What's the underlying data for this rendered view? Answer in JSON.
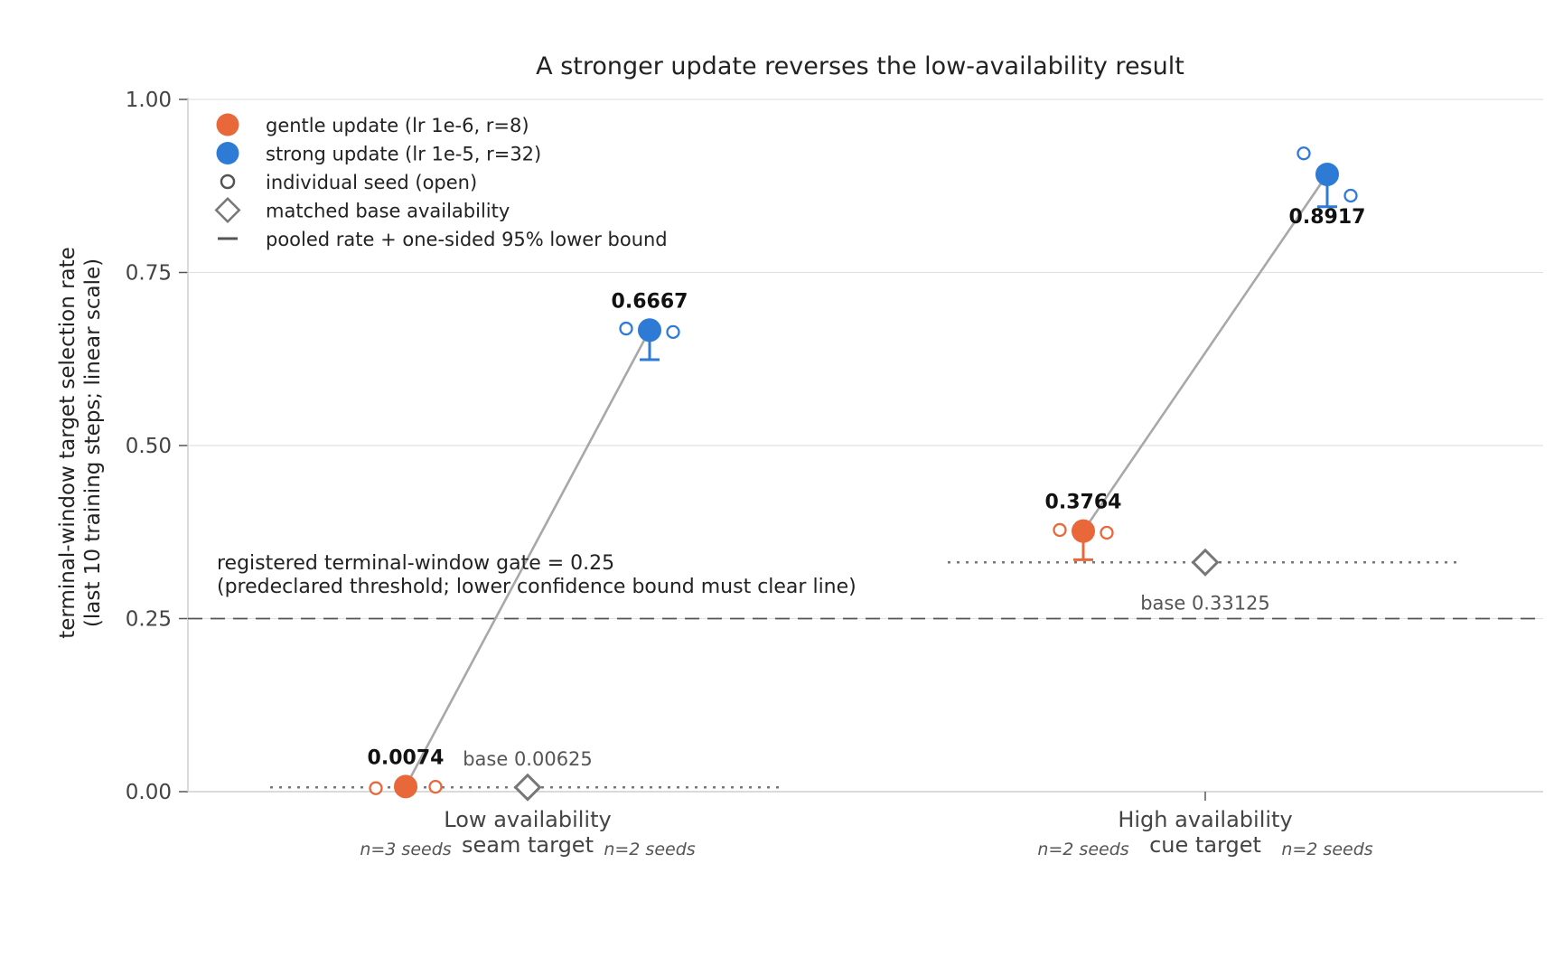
{
  "chart_data": {
    "type": "scatter",
    "title": "A stronger update reverses the low-availability result",
    "ylabel_line1": "terminal-window target selection rate",
    "ylabel_line2": "(last 10 training steps; linear scale)",
    "ylim": [
      0,
      1
    ],
    "y_ticks": [
      "0.00",
      "0.25",
      "0.50",
      "0.75",
      "1.00"
    ],
    "y_tick_values": [
      0,
      0.25,
      0.5,
      0.75,
      1.0
    ],
    "grid": "horizontal",
    "legend_position": "top-left",
    "categories": [
      {
        "line1": "Low availability",
        "line2": "seam target",
        "base": 0.00625,
        "base_label": "base 0.00625"
      },
      {
        "line1": "High availability",
        "line2": "cue target",
        "base": 0.33125,
        "base_label": "base 0.33125"
      }
    ],
    "series": [
      {
        "name": "gentle update (lr 1e-6, r=8)",
        "color": "#E8683A",
        "points": [
          {
            "category": 0,
            "pooled": 0.0074,
            "label": "0.0074",
            "lower": 0.0,
            "seeds": [
              0.005,
              0.0074,
              0.007
            ],
            "n_label": "n=3 seeds"
          },
          {
            "category": 1,
            "pooled": 0.3764,
            "label": "0.3764",
            "lower": 0.335,
            "seeds": [
              0.378,
              0.374
            ],
            "n_label": "n=2 seeds"
          }
        ]
      },
      {
        "name": "strong update (lr 1e-5, r=32)",
        "color": "#2E7BD6",
        "points": [
          {
            "category": 0,
            "pooled": 0.6667,
            "label": "0.6667",
            "lower": 0.624,
            "seeds": [
              0.669,
              0.664
            ],
            "n_label": "n=2 seeds"
          },
          {
            "category": 1,
            "pooled": 0.8917,
            "label": "0.8917",
            "lower": 0.845,
            "seeds": [
              0.922,
              0.861
            ],
            "n_label": "n=2 seeds"
          }
        ]
      }
    ],
    "legend": [
      {
        "kind": "gentle",
        "label": "gentle update (lr 1e-6, r=8)"
      },
      {
        "kind": "strong",
        "label": "strong update (lr 1e-5, r=32)"
      },
      {
        "kind": "seed",
        "label": "individual seed (open)"
      },
      {
        "kind": "base",
        "label": "matched base availability"
      },
      {
        "kind": "bound",
        "label": "pooled rate + one-sided 95% lower bound"
      }
    ],
    "threshold": {
      "value": 0.25,
      "line1": "registered terminal-window gate = 0.25",
      "line2": "(predeclared threshold; lower confidence bound must clear line)"
    }
  },
  "colors": {
    "gentle": "#E8683A",
    "strong": "#2E7BD6",
    "connector": "#a8a8a8",
    "base": "#777777",
    "grid": "#e2e2e2",
    "threshold": "#555555"
  }
}
